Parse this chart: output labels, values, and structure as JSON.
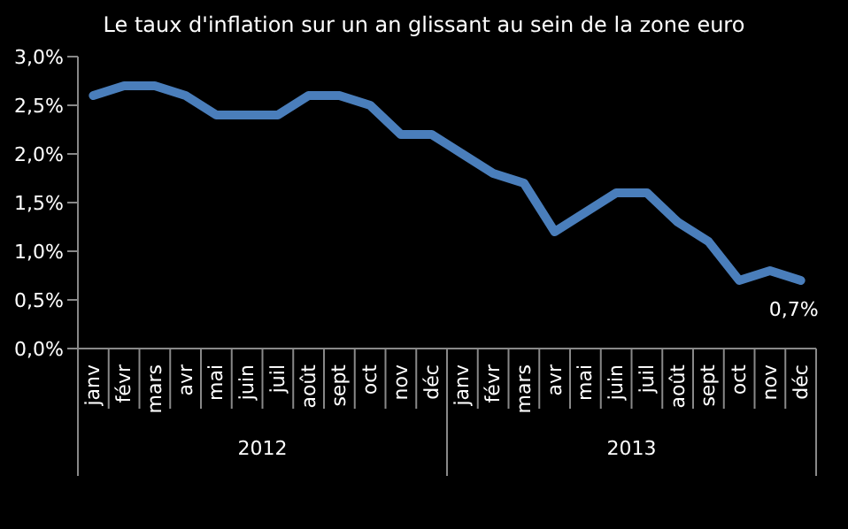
{
  "chart_data": {
    "type": "line",
    "title": "Le taux d'inflation sur un an glissant au sein de la zone euro",
    "categories": [
      "janv",
      "févr",
      "mars",
      "avr",
      "mai",
      "juin",
      "juil",
      "août",
      "sept",
      "oct",
      "nov",
      "déc",
      "janv",
      "févr",
      "mars",
      "avr",
      "mai",
      "juin",
      "juil",
      "août",
      "sept",
      "oct",
      "nov",
      "déc"
    ],
    "series": [
      {
        "color": "#4a7ebb",
        "values": [
          2.6,
          2.7,
          2.7,
          2.6,
          2.4,
          2.4,
          2.4,
          2.6,
          2.6,
          2.5,
          2.2,
          2.2,
          2.0,
          1.8,
          1.7,
          1.2,
          1.4,
          1.6,
          1.6,
          1.3,
          1.1,
          0.7,
          0.8,
          0.7
        ],
        "value_labels": [
          null,
          null,
          null,
          null,
          null,
          null,
          null,
          null,
          null,
          null,
          null,
          null,
          null,
          null,
          null,
          null,
          null,
          null,
          null,
          null,
          null,
          null,
          null,
          "0,7%"
        ]
      }
    ],
    "ylim": [
      0,
      3
    ],
    "yticks": [
      {
        "value": 0,
        "label": "0,0%"
      },
      {
        "value": 0.5,
        "label": "0,5%"
      },
      {
        "value": 1,
        "label": "1,0%"
      },
      {
        "value": 1.5,
        "label": "1,5%"
      },
      {
        "value": 2,
        "label": "2,0%"
      },
      {
        "value": 2.5,
        "label": "2,5%"
      },
      {
        "value": 3,
        "label": "3,0%"
      }
    ],
    "annotations": [
      "2012",
      "2013"
    ],
    "grid": false,
    "legend": false,
    "marker": "none",
    "line_style": "solid"
  }
}
